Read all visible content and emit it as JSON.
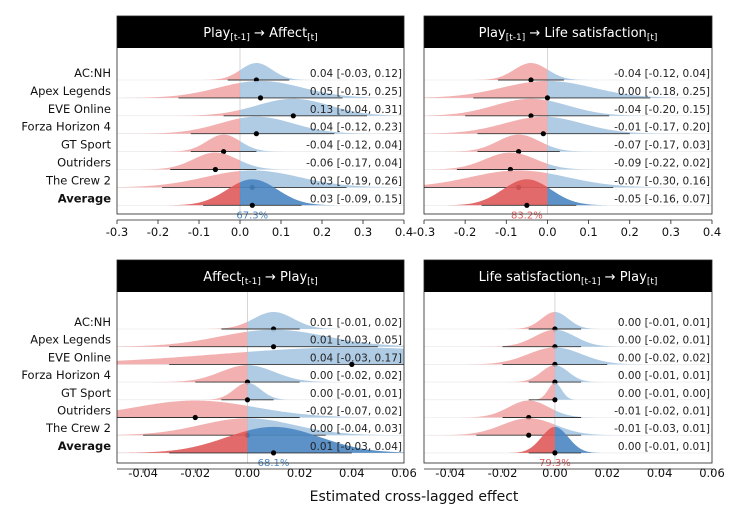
{
  "xlabel": "Estimated cross-lagged effect",
  "games": [
    "AC:NH",
    "Apex Legends",
    "EVE Online",
    "Forza Horizon 4",
    "GT Sport",
    "Outriders",
    "The Crew 2",
    "Average"
  ],
  "colors": {
    "blue": "#4a86c1",
    "blue_light": "#a7c6e2",
    "red": "#e05a5a",
    "red_light": "#f2a7a7",
    "header_bg": "#000000",
    "header_text": "#ffffff"
  },
  "chart_data": [
    {
      "type": "area",
      "title_main": "Play",
      "title_sub1": "[t-1]",
      "title_mid": " → Affect",
      "title_sub2": "[t]",
      "xlim": [
        -0.3,
        0.4
      ],
      "ticks": [
        -0.3,
        -0.2,
        -0.1,
        0.0,
        0.1,
        0.2,
        0.3,
        0.4
      ],
      "tick_labels": [
        "-0.3",
        "-0.2",
        "-0.1",
        "0.0",
        "0.1",
        "0.2",
        "0.3",
        "0.4"
      ],
      "estimates": [
        0.04,
        0.05,
        0.13,
        0.04,
        -0.04,
        -0.06,
        0.03,
        0.03
      ],
      "lower": [
        -0.03,
        -0.15,
        -0.04,
        -0.12,
        -0.12,
        -0.17,
        -0.19,
        -0.09
      ],
      "upper": [
        0.12,
        0.25,
        0.31,
        0.23,
        0.04,
        0.04,
        0.26,
        0.15
      ],
      "labels": [
        "0.04 [-0.03, 0.12]",
        "0.05 [-0.15, 0.25]",
        "0.13 [-0.04, 0.31]",
        "0.04 [-0.12, 0.23]",
        "-0.04 [-0.12, 0.04]",
        "-0.06 [-0.17, 0.04]",
        "0.03 [-0.19, 0.26]",
        "0.03 [-0.09, 0.15]"
      ],
      "pct_label": "67.3%",
      "pct_color": "#4a86c1"
    },
    {
      "type": "area",
      "title_main": "Play",
      "title_sub1": "[t-1]",
      "title_mid": " → Life satisfaction",
      "title_sub2": "[t]",
      "xlim": [
        -0.3,
        0.4
      ],
      "ticks": [
        -0.3,
        -0.2,
        -0.1,
        0.0,
        0.1,
        0.2,
        0.3,
        0.4
      ],
      "tick_labels": [
        "-0.3",
        "-0.2",
        "-0.1",
        "0.0",
        "0.1",
        "0.2",
        "0.3",
        "0.4"
      ],
      "estimates": [
        -0.04,
        0.0,
        -0.04,
        -0.01,
        -0.07,
        -0.09,
        -0.07,
        -0.05
      ],
      "lower": [
        -0.12,
        -0.18,
        -0.2,
        -0.17,
        -0.17,
        -0.22,
        -0.3,
        -0.16
      ],
      "upper": [
        0.04,
        0.25,
        0.15,
        0.2,
        0.03,
        0.02,
        0.16,
        0.07
      ],
      "labels": [
        "-0.04 [-0.12, 0.04]",
        "0.00 [-0.18, 0.25]",
        "-0.04 [-0.20, 0.15]",
        "-0.01 [-0.17, 0.20]",
        "-0.07 [-0.17, 0.03]",
        "-0.09 [-0.22, 0.02]",
        "-0.07 [-0.30, 0.16]",
        "-0.05 [-0.16, 0.07]"
      ],
      "pct_label": "83.2%",
      "pct_color": "#e05a5a"
    },
    {
      "type": "area",
      "title_main": "Affect",
      "title_sub1": "[t-1]",
      "title_mid": " → Play",
      "title_sub2": "[t]",
      "xlim": [
        -0.05,
        0.06
      ],
      "ticks": [
        -0.04,
        -0.02,
        0.0,
        0.02,
        0.04,
        0.06
      ],
      "tick_labels": [
        "-0.04",
        "-0.02",
        "0.00",
        "0.02",
        "0.04",
        "0.06"
      ],
      "estimates": [
        0.01,
        0.01,
        0.04,
        0.0,
        0.0,
        -0.02,
        0.0,
        0.01
      ],
      "lower": [
        -0.01,
        -0.03,
        -0.03,
        -0.02,
        -0.01,
        -0.07,
        -0.04,
        -0.03
      ],
      "upper": [
        0.02,
        0.05,
        0.17,
        0.02,
        0.01,
        0.02,
        0.03,
        0.04
      ],
      "labels": [
        "0.01 [-0.01, 0.02]",
        "0.01 [-0.03, 0.05]",
        "0.04 [-0.03, 0.17]",
        "0.00 [-0.02, 0.02]",
        "0.00 [-0.01, 0.01]",
        "-0.02 [-0.07, 0.02]",
        "0.00 [-0.04, 0.03]",
        "0.01 [-0.03, 0.04]"
      ],
      "pct_label": "68.1%",
      "pct_color": "#4a86c1"
    },
    {
      "type": "area",
      "title_main": "Life satisfaction",
      "title_sub1": "[t-1]",
      "title_mid": " → Play",
      "title_sub2": "[t]",
      "xlim": [
        -0.05,
        0.06
      ],
      "ticks": [
        -0.04,
        -0.02,
        0.0,
        0.02,
        0.04,
        0.06
      ],
      "tick_labels": [
        "-0.04",
        "-0.02",
        "0.00",
        "0.02",
        "0.04",
        "0.06"
      ],
      "estimates": [
        0.0,
        0.0,
        0.0,
        0.0,
        0.0,
        -0.01,
        -0.01,
        0.0
      ],
      "lower": [
        -0.01,
        -0.02,
        -0.02,
        -0.01,
        -0.01,
        -0.02,
        -0.03,
        -0.01
      ],
      "upper": [
        0.01,
        0.01,
        0.02,
        0.01,
        0.0,
        0.01,
        0.01,
        0.01
      ],
      "labels": [
        "0.00 [-0.01, 0.01]",
        "0.00 [-0.02, 0.01]",
        "0.00 [-0.02, 0.02]",
        "0.00 [-0.01, 0.01]",
        "0.00 [-0.01, 0.00]",
        "-0.01 [-0.02, 0.01]",
        "-0.01 [-0.03, 0.01]",
        "0.00 [-0.01, 0.01]"
      ],
      "pct_label": "79.3%",
      "pct_color": "#e05a5a"
    }
  ]
}
